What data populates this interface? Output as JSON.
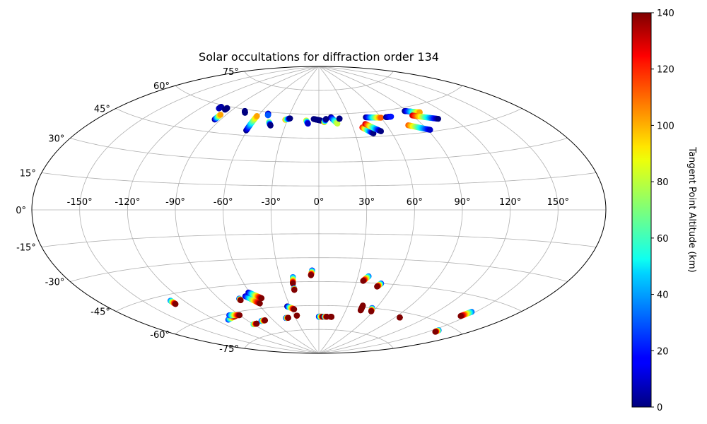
{
  "chart_data": {
    "type": "scatter",
    "projection": "aitoff",
    "title": "Solar occultations for diffraction order 134",
    "colorbar": {
      "label": "Tangent Point Altitude (km)",
      "colormap": "jet",
      "range": [
        0,
        140
      ],
      "ticks": [
        "0",
        "20",
        "40",
        "60",
        "80",
        "100",
        "120",
        "140"
      ]
    },
    "lon_ticks": [
      {
        "value": -150,
        "label": "-150°"
      },
      {
        "value": -120,
        "label": "-120°"
      },
      {
        "value": -90,
        "label": "-90°"
      },
      {
        "value": -60,
        "label": "-60°"
      },
      {
        "value": -30,
        "label": "-30°"
      },
      {
        "value": 0,
        "label": "0°"
      },
      {
        "value": 30,
        "label": "30°"
      },
      {
        "value": 60,
        "label": "60°"
      },
      {
        "value": 90,
        "label": "90°"
      },
      {
        "value": 120,
        "label": "120°"
      },
      {
        "value": 150,
        "label": "150°"
      }
    ],
    "lat_ticks": [
      {
        "value": 75,
        "label": "75°"
      },
      {
        "value": 60,
        "label": "60°"
      },
      {
        "value": 45,
        "label": "45°"
      },
      {
        "value": 30,
        "label": "30°"
      },
      {
        "value": 15,
        "label": "15°"
      },
      {
        "value": 0,
        "label": "0°"
      },
      {
        "value": -15,
        "label": "-15°"
      },
      {
        "value": -30,
        "label": "-30°"
      },
      {
        "value": -45,
        "label": "-45°"
      },
      {
        "value": -60,
        "label": "-60°"
      },
      {
        "value": -75,
        "label": "-75°"
      }
    ],
    "occultations": [
      {
        "lon0": -104,
        "lat0": 58,
        "lon1": -104,
        "lat1": 59,
        "alt0": 10,
        "alt1": 5
      },
      {
        "lon0": -97,
        "lat0": 59,
        "lon1": -97,
        "lat1": 58,
        "alt0": 0,
        "alt1": 0
      },
      {
        "lon0": -95,
        "lat0": 52,
        "lon1": -95,
        "lat1": 55,
        "alt0": 0,
        "alt1": 100
      },
      {
        "lon0": -77,
        "lat0": 59,
        "lon1": -75,
        "lat1": 58,
        "alt0": 0,
        "alt1": 0
      },
      {
        "lon0": -61,
        "lat0": 48,
        "lon1": -61,
        "lat1": 57,
        "alt0": 0,
        "alt1": 100
      },
      {
        "lon0": -52,
        "lat0": 59,
        "lon1": -51,
        "lat1": 58,
        "alt0": 0,
        "alt1": 30
      },
      {
        "lon0": -46,
        "lat0": 54,
        "lon1": -43,
        "lat1": 52,
        "alt0": 80,
        "alt1": 0
      },
      {
        "lon0": -32,
        "lat0": 56,
        "lon1": -28,
        "lat1": 57,
        "alt0": 100,
        "alt1": 0
      },
      {
        "lon0": -12,
        "lat0": 56,
        "lon1": -10,
        "lat1": 54,
        "alt0": 90,
        "alt1": 10
      },
      {
        "lon0": -5,
        "lat0": 57,
        "lon1": 2,
        "lat1": 56,
        "alt0": 0,
        "alt1": 0
      },
      {
        "lon0": 5,
        "lat0": 55,
        "lon1": 7,
        "lat1": 57,
        "alt0": 100,
        "alt1": 0
      },
      {
        "lon0": 12,
        "lat0": 58,
        "lon1": 17,
        "lat1": 54,
        "alt0": 0,
        "alt1": 80
      },
      {
        "lon0": 20,
        "lat0": 57,
        "lon1": 20,
        "lat1": 57,
        "alt0": 0,
        "alt1": 0
      },
      {
        "lon0": 38,
        "lat0": 51,
        "lon1": 45,
        "lat1": 47,
        "alt0": 120,
        "alt1": 0
      },
      {
        "lon0": 42,
        "lat0": 53,
        "lon1": 52,
        "lat1": 48,
        "alt0": 130,
        "alt1": 0
      },
      {
        "lon0": 46,
        "lat0": 57,
        "lon1": 60,
        "lat1": 56,
        "alt0": 0,
        "alt1": 110
      },
      {
        "lon0": 65,
        "lat0": 56,
        "lon1": 70,
        "lat1": 56,
        "alt0": 0,
        "alt1": 20
      },
      {
        "lon0": 78,
        "lat0": 50,
        "lon1": 92,
        "lat1": 46,
        "alt0": 110,
        "alt1": 10
      },
      {
        "lon0": 88,
        "lat0": 58,
        "lon1": 100,
        "lat1": 56,
        "alt0": 0,
        "alt1": 100
      },
      {
        "lon0": 90,
        "lat0": 55,
        "lon1": 108,
        "lat1": 51,
        "alt0": 130,
        "alt1": 0
      },
      {
        "lon0": -130,
        "lat0": -48,
        "lon1": -130,
        "lat1": -50,
        "alt0": 30,
        "alt1": 140
      },
      {
        "lon0": -108,
        "lat0": -63,
        "lon1": -95,
        "lat1": -62,
        "alt0": 20,
        "alt1": 140
      },
      {
        "lon0": -100,
        "lat0": -61,
        "lon1": -90,
        "lat1": -62,
        "alt0": 20,
        "alt1": 140
      },
      {
        "lon0": -90,
        "lat0": -68,
        "lon1": -85,
        "lat1": -68,
        "alt0": 50,
        "alt1": 140
      },
      {
        "lon0": -73,
        "lat0": -53,
        "lon1": -73,
        "lat1": -54,
        "alt0": 10,
        "alt1": 140
      },
      {
        "lon0": -75,
        "lat0": -67,
        "lon1": -70,
        "lat1": -67,
        "alt0": 20,
        "alt1": 140
      },
      {
        "lon0": -66,
        "lat0": -52,
        "lon1": -58,
        "lat1": -57,
        "alt0": 10,
        "alt1": 140
      },
      {
        "lon0": -61,
        "lat0": -50,
        "lon1": -53,
        "lat1": -54,
        "alt0": 10,
        "alt1": 140
      },
      {
        "lon0": -42,
        "lat0": -67,
        "lon1": -39,
        "lat1": -67,
        "alt0": 10,
        "alt1": 140
      },
      {
        "lon0": -33,
        "lat0": -60,
        "lon1": -27,
        "lat1": -62,
        "alt0": 0,
        "alt1": 140
      },
      {
        "lon0": -27,
        "lat0": -66,
        "lon1": -27,
        "lat1": -66,
        "alt0": 30,
        "alt1": 140
      },
      {
        "lon0": -20,
        "lat0": -42,
        "lon1": -21,
        "lat1": -46,
        "alt0": 30,
        "alt1": 140
      },
      {
        "lon0": -21,
        "lat0": -49,
        "lon1": -21,
        "lat1": -50,
        "alt0": 10,
        "alt1": 140
      },
      {
        "lon0": -5,
        "lat0": -38,
        "lon1": -6,
        "lat1": -41,
        "alt0": 20,
        "alt1": 140
      },
      {
        "lon0": 0,
        "lat0": -67,
        "lon1": 5,
        "lat1": -67,
        "alt0": 10,
        "alt1": 140
      },
      {
        "lon0": 7,
        "lat0": -67,
        "lon1": 10,
        "lat1": -67,
        "alt0": 20,
        "alt1": 140
      },
      {
        "lon0": 15,
        "lat0": -67,
        "lon1": 16,
        "lat1": -67,
        "alt0": 140,
        "alt1": 140
      },
      {
        "lon0": 38,
        "lat0": -41,
        "lon1": 35,
        "lat1": -44,
        "alt0": 30,
        "alt1": 140
      },
      {
        "lon0": 50,
        "lat0": -45,
        "lon1": 48,
        "lat1": -47,
        "alt0": 20,
        "alt1": 140
      },
      {
        "lon0": 45,
        "lat0": -59,
        "lon1": 46,
        "lat1": -62,
        "alt0": 140,
        "alt1": 140
      },
      {
        "lon0": 56,
        "lat0": -60,
        "lon1": 58,
        "lat1": -62,
        "alt0": 20,
        "alt1": 140
      },
      {
        "lon0": 95,
        "lat0": -63,
        "lon1": 95,
        "lat1": -63,
        "alt0": 140,
        "alt1": 140
      },
      {
        "lon0": 147,
        "lat0": -52,
        "lon1": 145,
        "lat1": -55,
        "alt0": 30,
        "alt1": 140
      },
      {
        "lon0": 155,
        "lat0": -63,
        "lon1": 156,
        "lat1": -64,
        "alt0": 30,
        "alt1": 140
      }
    ]
  }
}
